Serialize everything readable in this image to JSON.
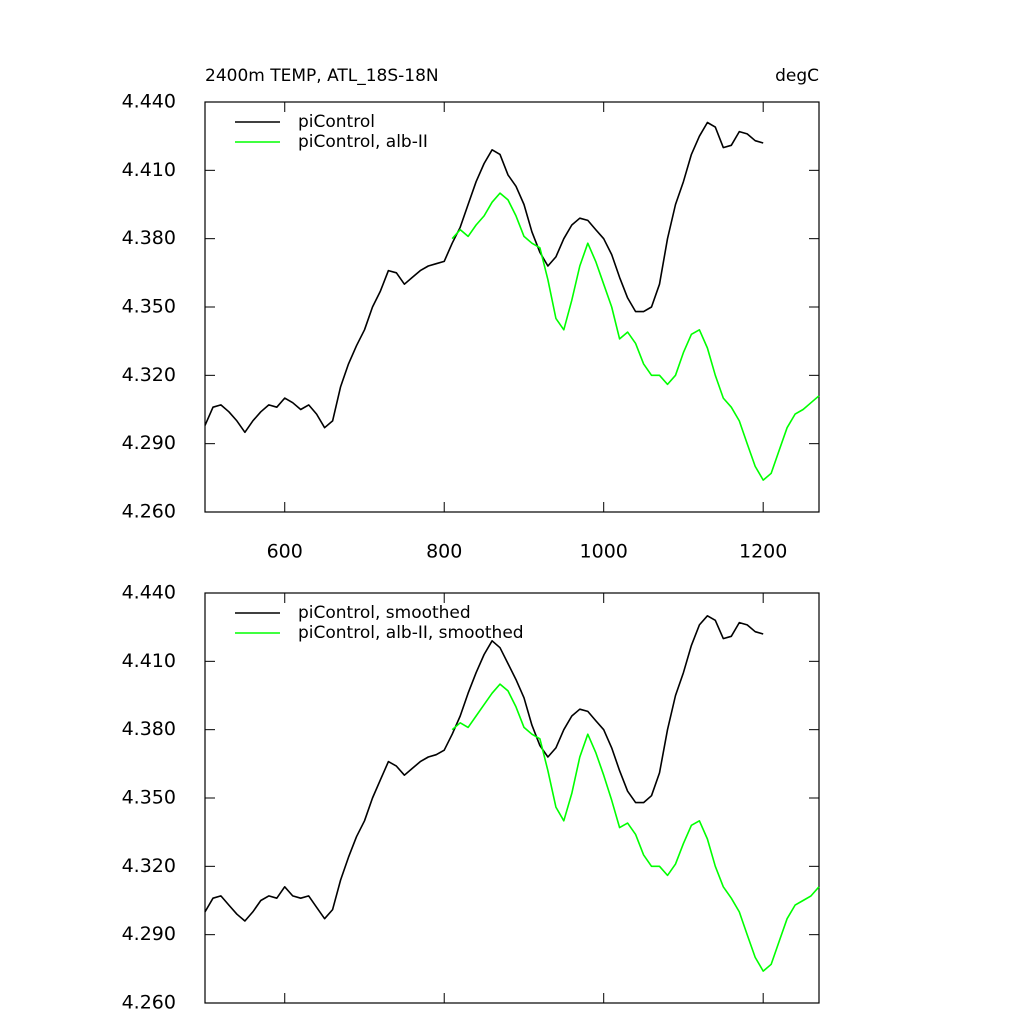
{
  "chart_data": [
    {
      "type": "line",
      "title": "2400m TEMP, ATL_18S-18N",
      "unit_label": "degC",
      "x": [
        500,
        510,
        520,
        530,
        540,
        550,
        560,
        570,
        580,
        590,
        600,
        610,
        620,
        630,
        640,
        650,
        660,
        670,
        680,
        690,
        700,
        710,
        720,
        730,
        740,
        750,
        760,
        770,
        780,
        790,
        800,
        810,
        820,
        830,
        840,
        850,
        860,
        870,
        880,
        890,
        900,
        910,
        920,
        930,
        940,
        950,
        960,
        970,
        980,
        990,
        1000,
        1010,
        1020,
        1030,
        1040,
        1050,
        1060,
        1070,
        1080,
        1090,
        1100,
        1110,
        1120,
        1130,
        1140,
        1150,
        1160,
        1170,
        1180,
        1190,
        1200,
        1210,
        1220,
        1230,
        1240,
        1250,
        1260,
        1270
      ],
      "series": [
        {
          "name": "piControl",
          "color": "#000000",
          "values": [
            4.298,
            4.306,
            4.307,
            4.304,
            4.3,
            4.295,
            4.3,
            4.304,
            4.307,
            4.306,
            4.31,
            4.308,
            4.305,
            4.307,
            4.303,
            4.297,
            4.3,
            4.315,
            4.325,
            4.333,
            4.34,
            4.35,
            4.357,
            4.366,
            4.365,
            4.36,
            4.363,
            4.366,
            4.368,
            4.369,
            4.37,
            4.378,
            4.385,
            4.395,
            4.405,
            4.413,
            4.419,
            4.417,
            4.408,
            4.403,
            4.395,
            4.383,
            4.374,
            4.368,
            4.372,
            4.38,
            4.386,
            4.389,
            4.388,
            4.384,
            4.38,
            4.373,
            4.363,
            4.354,
            4.348,
            4.348,
            4.35,
            4.36,
            4.38,
            4.395,
            4.405,
            4.417,
            4.425,
            4.431,
            4.429,
            4.42,
            4.421,
            4.427,
            4.426,
            4.423,
            4.422,
            null,
            null,
            null,
            null,
            null,
            null,
            null
          ]
        },
        {
          "name": "piControl, alb-II",
          "color": "#00ff00",
          "values": [
            null,
            null,
            null,
            null,
            null,
            null,
            null,
            null,
            null,
            null,
            null,
            null,
            null,
            null,
            null,
            null,
            null,
            null,
            null,
            null,
            null,
            null,
            null,
            null,
            null,
            null,
            null,
            null,
            null,
            null,
            null,
            4.38,
            4.384,
            4.381,
            4.386,
            4.39,
            4.396,
            4.4,
            4.397,
            4.39,
            4.381,
            4.378,
            4.376,
            4.362,
            4.345,
            4.34,
            4.353,
            4.368,
            4.378,
            4.37,
            4.36,
            4.35,
            4.336,
            4.339,
            4.334,
            4.325,
            4.32,
            4.32,
            4.316,
            4.32,
            4.33,
            4.338,
            4.34,
            4.332,
            4.32,
            4.31,
            4.306,
            4.3,
            4.29,
            4.28,
            4.274,
            4.277,
            4.287,
            4.297,
            4.303,
            4.305,
            4.308,
            4.311
          ]
        }
      ],
      "xlim": [
        500,
        1270
      ],
      "xticks": [
        600,
        800,
        1000,
        1200
      ],
      "ylim": [
        4.26,
        4.44
      ],
      "yticks": [
        {
          "value": 4.26,
          "label": "4.260"
        },
        {
          "value": 4.29,
          "label": "4.290"
        },
        {
          "value": 4.32,
          "label": "4.320"
        },
        {
          "value": 4.35,
          "label": "4.350"
        },
        {
          "value": 4.38,
          "label": "4.380"
        },
        {
          "value": 4.41,
          "label": "4.410"
        },
        {
          "value": 4.44,
          "label": "4.440"
        }
      ],
      "legend": "top-left"
    },
    {
      "type": "line",
      "x": [
        500,
        510,
        520,
        530,
        540,
        550,
        560,
        570,
        580,
        590,
        600,
        610,
        620,
        630,
        640,
        650,
        660,
        670,
        680,
        690,
        700,
        710,
        720,
        730,
        740,
        750,
        760,
        770,
        780,
        790,
        800,
        810,
        820,
        830,
        840,
        850,
        860,
        870,
        880,
        890,
        900,
        910,
        920,
        930,
        940,
        950,
        960,
        970,
        980,
        990,
        1000,
        1010,
        1020,
        1030,
        1040,
        1050,
        1060,
        1070,
        1080,
        1090,
        1100,
        1110,
        1120,
        1130,
        1140,
        1150,
        1160,
        1170,
        1180,
        1190,
        1200,
        1210,
        1220,
        1230,
        1240,
        1250,
        1260,
        1270
      ],
      "series": [
        {
          "name": "piControl, smoothed",
          "color": "#000000",
          "values": [
            4.3,
            4.306,
            4.307,
            4.303,
            4.299,
            4.296,
            4.3,
            4.305,
            4.307,
            4.306,
            4.311,
            4.307,
            4.306,
            4.307,
            4.302,
            4.297,
            4.301,
            4.314,
            4.324,
            4.333,
            4.34,
            4.35,
            4.358,
            4.366,
            4.364,
            4.36,
            4.363,
            4.366,
            4.368,
            4.369,
            4.371,
            4.378,
            4.386,
            4.396,
            4.405,
            4.413,
            4.419,
            4.416,
            4.409,
            4.402,
            4.394,
            4.382,
            4.373,
            4.368,
            4.372,
            4.38,
            4.386,
            4.389,
            4.388,
            4.384,
            4.38,
            4.372,
            4.362,
            4.353,
            4.348,
            4.348,
            4.351,
            4.361,
            4.38,
            4.395,
            4.405,
            4.417,
            4.426,
            4.43,
            4.428,
            4.42,
            4.421,
            4.427,
            4.426,
            4.423,
            4.422,
            null,
            null,
            null,
            null,
            null,
            null,
            null
          ]
        },
        {
          "name": "piControl, alb-II, smoothed",
          "color": "#00ff00",
          "values": [
            null,
            null,
            null,
            null,
            null,
            null,
            null,
            null,
            null,
            null,
            null,
            null,
            null,
            null,
            null,
            null,
            null,
            null,
            null,
            null,
            null,
            null,
            null,
            null,
            null,
            null,
            null,
            null,
            null,
            null,
            null,
            4.38,
            4.383,
            4.381,
            4.386,
            4.391,
            4.396,
            4.4,
            4.397,
            4.39,
            4.381,
            4.378,
            4.376,
            4.362,
            4.346,
            4.34,
            4.352,
            4.368,
            4.378,
            4.37,
            4.36,
            4.349,
            4.337,
            4.339,
            4.334,
            4.325,
            4.32,
            4.32,
            4.316,
            4.321,
            4.33,
            4.338,
            4.34,
            4.332,
            4.32,
            4.311,
            4.306,
            4.3,
            4.29,
            4.28,
            4.274,
            4.277,
            4.287,
            4.297,
            4.303,
            4.305,
            4.307,
            4.311
          ]
        }
      ],
      "xlim": [
        500,
        1270
      ],
      "xticks": [
        600,
        800,
        1000,
        1200
      ],
      "ylim": [
        4.26,
        4.44
      ],
      "yticks": [
        {
          "value": 4.26,
          "label": "4.260"
        },
        {
          "value": 4.29,
          "label": "4.290"
        },
        {
          "value": 4.32,
          "label": "4.320"
        },
        {
          "value": 4.35,
          "label": "4.350"
        },
        {
          "value": 4.38,
          "label": "4.380"
        },
        {
          "value": 4.41,
          "label": "4.410"
        },
        {
          "value": 4.44,
          "label": "4.440"
        }
      ],
      "legend": "top-left"
    }
  ]
}
